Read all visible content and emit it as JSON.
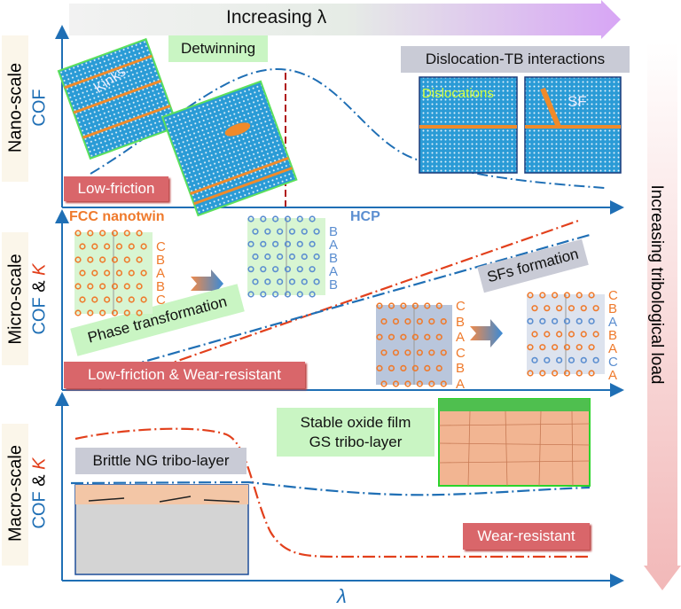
{
  "top_arrow": {
    "label": "Increasing λ"
  },
  "right_arrow": {
    "label": "Increasing tribological load"
  },
  "x_axis_label": "λ",
  "colors": {
    "blue": "#1f6fb5",
    "orange": "#ef7a2c",
    "red": "#e2401c",
    "green_box": "#c9f5c3",
    "gray_box": "#c9cbd6",
    "red_box": "#d9666a"
  },
  "nano": {
    "scale_label": "Nano-scale",
    "y_label": "COF",
    "detwinning": "Detwinning",
    "kinks": "Kinks",
    "low_friction": "Low-friction",
    "dislocation_tb": "Dislocation-TB interactions",
    "dislocations": "Dislocations",
    "sf": "SF"
  },
  "micro": {
    "scale_label": "Micro-scale",
    "y_label_cof": "COF",
    "y_label_amp": " & ",
    "y_label_k": "K",
    "fcc": "FCC nanotwin",
    "hcp": "HCP",
    "phase_transformation": "Phase transformation",
    "sfs_formation": "SFs formation",
    "low_friction_wear": "Low-friction & Wear-resistant",
    "lattices": [
      {
        "letters": [
          "C",
          "B",
          "A",
          "B",
          "C"
        ],
        "colors": [
          "o",
          "o",
          "o",
          "o",
          "o"
        ]
      },
      {
        "letters": [
          "B",
          "A",
          "B",
          "A",
          "B"
        ],
        "colors": [
          "b",
          "b",
          "b",
          "b",
          "b"
        ]
      },
      {
        "letters": [
          "C",
          "B",
          "A",
          "C",
          "B",
          "A"
        ],
        "colors": [
          "o",
          "o",
          "o",
          "o",
          "o",
          "o"
        ]
      },
      {
        "letters": [
          "C",
          "B",
          "A",
          "B",
          "A",
          "C",
          "A"
        ],
        "colors": [
          "o",
          "o",
          "b",
          "o",
          "o",
          "b",
          "o"
        ]
      }
    ]
  },
  "macro": {
    "scale_label": "Macro-scale",
    "y_label_cof": "COF",
    "y_label_amp": " & ",
    "y_label_k": "K",
    "stable_oxide": "Stable oxide film",
    "gs_tribo": "GS tribo-layer",
    "brittle_ng": "Brittle NG tribo-layer",
    "wear_resistant": "Wear-resistant"
  }
}
